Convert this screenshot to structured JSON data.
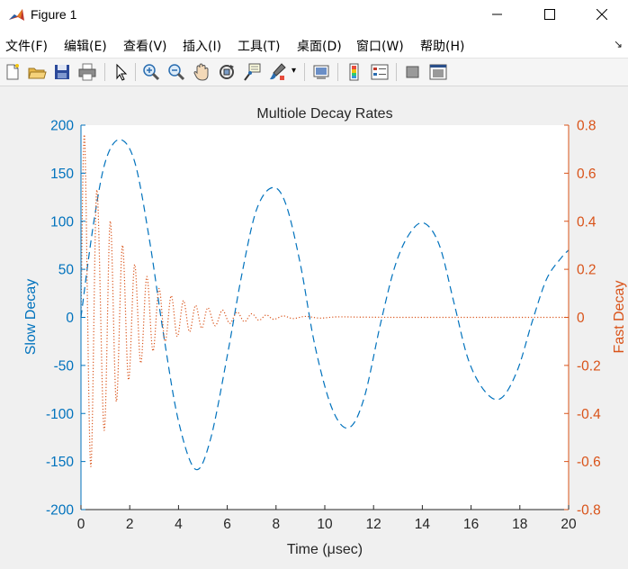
{
  "window": {
    "title": "Figure 1"
  },
  "menu": [
    "文件(F)",
    "编辑(E)",
    "查看(V)",
    "插入(I)",
    "工具(T)",
    "桌面(D)",
    "窗口(W)",
    "帮助(H)"
  ],
  "toolbar": {
    "icons": [
      "new-figure-icon",
      "open-file-icon",
      "save-icon",
      "print-icon",
      "pointer-icon",
      "zoom-in-icon",
      "zoom-out-icon",
      "pan-icon",
      "rotate-3d-icon",
      "data-cursor-icon",
      "brush-icon",
      "link-plot-icon",
      "colorbar-icon",
      "legend-icon",
      "hide-plot-tools-icon",
      "show-plot-tools-icon"
    ]
  },
  "colors": {
    "left_axis": "#0072BD",
    "right_axis": "#D95319",
    "axes_bg": "#ffffff",
    "figure_bg": "#f0f0f0"
  },
  "chart_data": {
    "type": "line",
    "title": "Multiole Decay Rates",
    "xlabel": "Time (μsec)",
    "ylabel_left": "Slow Decay",
    "ylabel_right": "Fast Decay",
    "xlim": [
      0,
      20
    ],
    "ylim_left": [
      -200,
      200
    ],
    "ylim_right": [
      -0.8,
      0.8
    ],
    "xticks": [
      0,
      2,
      4,
      6,
      8,
      10,
      12,
      14,
      16,
      18,
      20
    ],
    "yticks_left": [
      -200,
      -150,
      -100,
      -50,
      0,
      50,
      100,
      150,
      200
    ],
    "yticks_right": [
      -0.8,
      -0.6,
      -0.4,
      -0.2,
      0,
      0.2,
      0.4,
      0.6,
      0.8
    ],
    "grid": false,
    "series": [
      {
        "axis": "left",
        "style": "dashed",
        "color": "#0072BD",
        "x": [
          0,
          0.5,
          1.0,
          1.58,
          2.2,
          2.8,
          3.4,
          4.0,
          4.69,
          5.3,
          6.0,
          6.6,
          7.2,
          7.85,
          8.4,
          9.0,
          9.6,
          10.3,
          10.97,
          11.6,
          12.3,
          12.9,
          13.5,
          14.08,
          14.7,
          15.3,
          15.9,
          16.6,
          17.24,
          17.9,
          18.5,
          19.1,
          19.7,
          20.0
        ],
        "y": [
          0,
          95,
          162,
          185,
          162,
          82,
          -20,
          -108,
          -158,
          -128,
          -40,
          45,
          112,
          135,
          118,
          55,
          -30,
          -95,
          -115,
          -85,
          -5,
          55,
          88,
          98,
          75,
          15,
          -45,
          -78,
          -84,
          -55,
          -5,
          40,
          62,
          70
        ]
      },
      {
        "axis": "right",
        "style": "dotted",
        "color": "#D95319",
        "x": [
          0,
          0.15,
          0.4,
          0.65,
          0.95,
          1.2,
          1.45,
          1.7,
          1.95,
          2.2,
          2.45,
          2.7,
          2.95,
          3.2,
          3.45,
          3.7,
          3.95,
          4.2,
          4.45,
          4.7,
          4.95,
          5.2,
          5.5,
          5.8,
          6.1,
          6.4,
          6.7,
          7.0,
          7.3,
          7.6,
          7.9,
          8.3,
          8.7,
          9.2,
          9.8,
          10.5,
          11.5,
          13,
          15,
          17,
          20
        ],
        "y": [
          0,
          0.75,
          -0.62,
          0.53,
          -0.47,
          0.4,
          -0.35,
          0.3,
          -0.26,
          0.22,
          -0.19,
          0.17,
          -0.14,
          0.12,
          -0.1,
          0.09,
          -0.08,
          0.07,
          -0.06,
          0.05,
          -0.045,
          0.04,
          -0.035,
          0.03,
          -0.025,
          0.022,
          -0.018,
          0.015,
          -0.012,
          0.01,
          -0.008,
          0.006,
          -0.005,
          0.004,
          -0.003,
          0.002,
          0.001,
          0,
          0,
          0,
          0
        ]
      }
    ]
  }
}
